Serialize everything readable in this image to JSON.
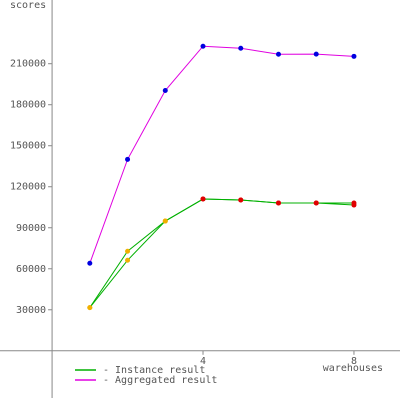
{
  "chart_data": {
    "type": "line",
    "y_label": "scores",
    "x_label": "warehouses",
    "xlim": [
      -1.38,
      9.22
    ],
    "ylim": [
      -36000,
      256600
    ],
    "xticks": [
      4,
      8
    ],
    "yticks": [
      30000,
      60000,
      90000,
      120000,
      150000,
      180000,
      210000
    ],
    "series": [
      {
        "name": "- Instance result",
        "color": "#00b000",
        "x": [
          1,
          2,
          3,
          4,
          5,
          6,
          7,
          8
        ],
        "values": [
          31600,
          72800,
          94900,
          111000,
          110300,
          108100,
          108100,
          108100
        ],
        "marker_colors": [
          "#f0b000",
          "#f0b000",
          "#f0b000",
          "#e00000",
          "#e00000",
          "#e00000",
          "#e00000",
          "#e00000"
        ]
      },
      {
        "color": "#00b000",
        "x": [
          1,
          2,
          3,
          4,
          5,
          6,
          7,
          8
        ],
        "values": [
          31600,
          66200,
          94900,
          111000,
          110300,
          108100,
          108100,
          106600
        ],
        "marker_colors": [
          "#f0b000",
          "#f0b000",
          "#f0b000",
          "#e00000",
          "#e00000",
          "#e00000",
          "#e00000",
          "#e00000"
        ]
      },
      {
        "name": "- Aggregated result",
        "color": "#e000e0",
        "x": [
          1,
          2,
          3,
          4,
          5,
          6,
          7,
          8
        ],
        "values": [
          64000,
          140000,
          190400,
          222800,
          221300,
          216900,
          217000,
          215400
        ],
        "marker_colors": [
          "#0000e0",
          "#0000e0",
          "#0000e0",
          "#0000e0",
          "#0000e0",
          "#0000e0",
          "#0000e0",
          "#0000e0"
        ]
      }
    ]
  }
}
